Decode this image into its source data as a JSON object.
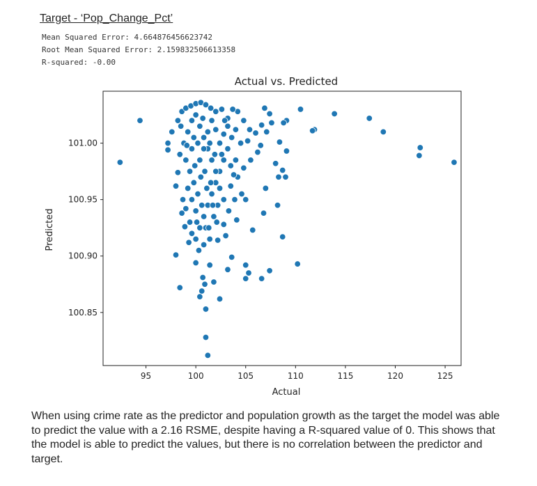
{
  "heading": "Target - ‘Pop_Change_Pct’",
  "metrics": [
    "Mean Squared Error: 4.664876456623742",
    "Root Mean Squared Error: 2.159832506613358",
    "R-squared: -0.00"
  ],
  "chart_data": {
    "type": "scatter",
    "title": "Actual vs. Predicted",
    "xlabel": "Actual",
    "ylabel": "Predicted",
    "xlim": [
      90.7,
      126.6
    ],
    "ylim": [
      100.803,
      101.046
    ],
    "xticks": [
      95,
      100,
      105,
      110,
      115,
      120,
      125
    ],
    "xtick_labels": [
      "95",
      "100",
      "105",
      "110",
      "115",
      "120",
      "125"
    ],
    "yticks": [
      100.85,
      100.9,
      100.95,
      101.0
    ],
    "ytick_labels": [
      "100.85",
      "100.90",
      "100.95",
      "101.00"
    ],
    "grid": false,
    "color": "#1f77b4",
    "points": [
      [
        92.4,
        100.983
      ],
      [
        94.4,
        101.02
      ],
      [
        110.5,
        101.03
      ],
      [
        113.9,
        101.026
      ],
      [
        117.4,
        101.022
      ],
      [
        118.8,
        101.01
      ],
      [
        122.5,
        100.996
      ],
      [
        122.4,
        100.989
      ],
      [
        125.9,
        100.983
      ],
      [
        111.9,
        101.012
      ],
      [
        111.7,
        101.011
      ],
      [
        110.2,
        100.893
      ],
      [
        101.2,
        100.812
      ],
      [
        101.0,
        100.828
      ],
      [
        101.0,
        100.853
      ],
      [
        102.4,
        100.862
      ],
      [
        98.4,
        100.872
      ],
      [
        105.3,
        100.885
      ],
      [
        105.0,
        100.88
      ],
      [
        106.6,
        100.88
      ],
      [
        107.4,
        100.887
      ],
      [
        103.2,
        100.888
      ],
      [
        105.0,
        100.892
      ],
      [
        103.6,
        100.899
      ],
      [
        98.0,
        100.901
      ],
      [
        100.0,
        100.894
      ],
      [
        101.4,
        100.892
      ],
      [
        100.7,
        100.881
      ],
      [
        101.8,
        100.877
      ],
      [
        100.9,
        100.875
      ],
      [
        100.6,
        100.869
      ],
      [
        100.4,
        100.864
      ],
      [
        108.7,
        100.917
      ],
      [
        108.2,
        100.945
      ],
      [
        106.8,
        100.938
      ],
      [
        105.7,
        100.923
      ],
      [
        107.0,
        100.96
      ],
      [
        108.3,
        100.97
      ],
      [
        109.0,
        100.97
      ],
      [
        108.7,
        100.976
      ],
      [
        108.0,
        100.982
      ],
      [
        109.1,
        100.993
      ],
      [
        108.4,
        101.001
      ],
      [
        109.1,
        101.02
      ],
      [
        108.8,
        101.018
      ],
      [
        107.6,
        101.018
      ],
      [
        107.4,
        101.026
      ],
      [
        106.9,
        101.031
      ],
      [
        106.6,
        101.016
      ],
      [
        106.0,
        101.009
      ],
      [
        105.4,
        101.012
      ],
      [
        104.8,
        101.02
      ],
      [
        104.2,
        101.028
      ],
      [
        103.7,
        101.03
      ],
      [
        103.2,
        101.022
      ],
      [
        102.6,
        101.03
      ],
      [
        107.1,
        101.01
      ],
      [
        106.5,
        100.998
      ],
      [
        106.2,
        100.992
      ],
      [
        105.5,
        100.985
      ],
      [
        104.8,
        100.978
      ],
      [
        104.2,
        100.97
      ],
      [
        103.5,
        100.962
      ],
      [
        104.6,
        100.955
      ],
      [
        105.0,
        100.95
      ],
      [
        103.9,
        100.95
      ],
      [
        103.3,
        100.94
      ],
      [
        104.1,
        100.932
      ],
      [
        102.8,
        100.928
      ],
      [
        103.0,
        100.918
      ],
      [
        102.2,
        100.914
      ],
      [
        97.2,
        101.0
      ],
      [
        97.2,
        100.994
      ],
      [
        97.6,
        101.01
      ],
      [
        98.2,
        101.02
      ],
      [
        98.6,
        101.028
      ],
      [
        99.0,
        101.031
      ],
      [
        99.5,
        101.033
      ],
      [
        100.0,
        101.035
      ],
      [
        100.5,
        101.036
      ],
      [
        101.0,
        101.034
      ],
      [
        101.5,
        101.031
      ],
      [
        102.0,
        101.028
      ],
      [
        98.4,
        100.99
      ],
      [
        98.2,
        100.974
      ],
      [
        98.0,
        100.962
      ],
      [
        98.7,
        100.95
      ],
      [
        99.0,
        100.942
      ],
      [
        99.4,
        100.93
      ],
      [
        99.6,
        100.92
      ],
      [
        100.0,
        100.915
      ],
      [
        100.4,
        100.925
      ],
      [
        100.8,
        100.935
      ],
      [
        101.2,
        100.945
      ],
      [
        101.6,
        100.955
      ],
      [
        102.0,
        100.965
      ],
      [
        102.4,
        100.975
      ],
      [
        102.8,
        100.985
      ],
      [
        103.2,
        100.995
      ],
      [
        103.6,
        101.005
      ],
      [
        104.0,
        101.012
      ],
      [
        98.8,
        101.0
      ],
      [
        99.2,
        101.01
      ],
      [
        99.6,
        101.02
      ],
      [
        100.0,
        101.025
      ],
      [
        100.4,
        101.015
      ],
      [
        100.8,
        101.005
      ],
      [
        101.2,
        100.995
      ],
      [
        101.6,
        100.985
      ],
      [
        102.0,
        100.975
      ],
      [
        102.4,
        100.96
      ],
      [
        102.8,
        100.95
      ],
      [
        99.0,
        100.985
      ],
      [
        99.4,
        100.975
      ],
      [
        99.8,
        100.965
      ],
      [
        100.2,
        100.955
      ],
      [
        100.6,
        100.945
      ],
      [
        101.0,
        100.925
      ],
      [
        101.4,
        100.915
      ],
      [
        101.8,
        100.935
      ],
      [
        102.2,
        100.945
      ],
      [
        99.2,
        100.96
      ],
      [
        99.6,
        100.95
      ],
      [
        100.0,
        100.94
      ],
      [
        100.4,
        100.985
      ],
      [
        100.8,
        100.995
      ],
      [
        101.2,
        101.01
      ],
      [
        101.6,
        101.02
      ],
      [
        102.0,
        101.012
      ],
      [
        102.4,
        101.0
      ],
      [
        102.8,
        101.008
      ],
      [
        103.2,
        101.015
      ],
      [
        99.6,
        100.995
      ],
      [
        100.2,
        101.0
      ],
      [
        100.9,
        100.975
      ],
      [
        101.5,
        100.965
      ],
      [
        99.9,
        100.98
      ],
      [
        100.5,
        100.97
      ],
      [
        101.1,
        100.96
      ],
      [
        101.7,
        100.945
      ],
      [
        98.6,
        100.938
      ],
      [
        98.9,
        100.926
      ],
      [
        99.3,
        100.912
      ],
      [
        100.3,
        100.905
      ],
      [
        100.8,
        100.91
      ],
      [
        101.3,
        100.925
      ],
      [
        99.8,
        101.005
      ],
      [
        100.7,
        101.022
      ],
      [
        101.4,
        101.0
      ],
      [
        102.6,
        100.99
      ],
      [
        103.5,
        100.98
      ],
      [
        102.1,
        100.93
      ],
      [
        98.5,
        101.015
      ],
      [
        99.1,
        100.998
      ],
      [
        100.1,
        100.93
      ],
      [
        101.9,
        100.99
      ],
      [
        102.9,
        101.02
      ],
      [
        104.5,
        101.0
      ],
      [
        105.2,
        101.002
      ],
      [
        104.0,
        100.985
      ],
      [
        103.8,
        100.972
      ]
    ]
  },
  "paragraph": "When using crime rate as the predictor and population growth as the target the model was able to predict the value with a 2.16 RSME, despite having a R-squared value of 0. This shows that the model is able to predict the values, but there is no correlation between the predictor and target."
}
